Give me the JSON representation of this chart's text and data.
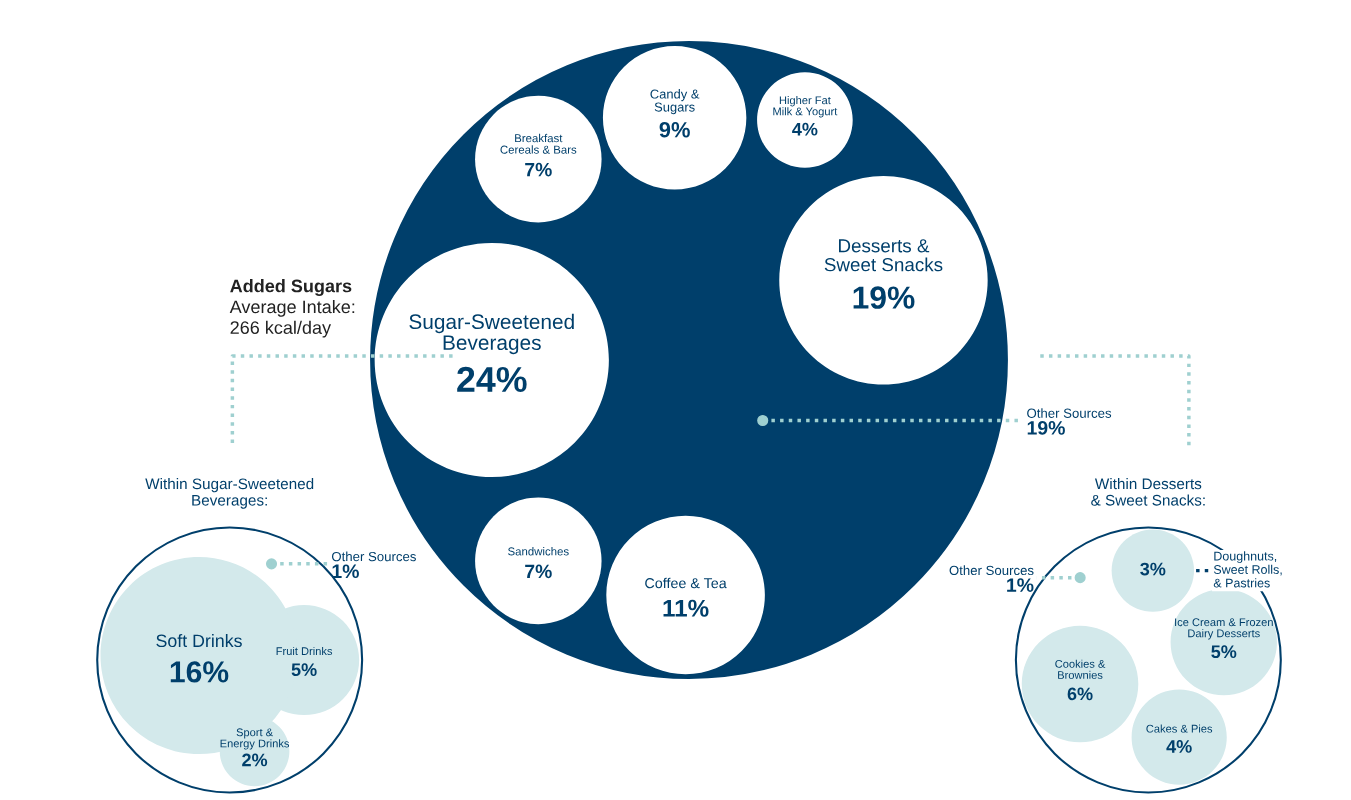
{
  "chart_data": [
    {
      "type": "other",
      "title": "Added Sugars",
      "subtitle": "Average Intake: 266 kcal/day",
      "categories": [
        "Sugar-Sweetened Beverages",
        "Breakfast Cereals & Bars",
        "Candy & Sugars",
        "Higher Fat Milk & Yogurt",
        "Desserts & Sweet Snacks",
        "Coffee & Tea",
        "Sandwiches",
        "Other Sources"
      ],
      "values": [
        24,
        7,
        9,
        4,
        19,
        11,
        7,
        19
      ],
      "value_labels": [
        "24%",
        "7%",
        "9%",
        "4%",
        "19%",
        "11%",
        "7%",
        "19%"
      ],
      "colors": [
        "#ffffff",
        "#ffffff",
        "#ffffff",
        "#ffffff",
        "#ffffff",
        "#ffffff",
        "#ffffff",
        "#9fd0d0"
      ]
    },
    {
      "type": "other",
      "title": "Within Sugar-Sweetened Beverages:",
      "categories": [
        "Fruit Drinks",
        "Sport & Energy Drinks",
        "Soft Drinks",
        "Other Sources"
      ],
      "values": [
        5,
        2,
        16,
        1
      ],
      "value_labels": [
        "5%",
        "2%",
        "16%",
        "1%"
      ],
      "colors": [
        "#d3e9eb",
        "#d3e9eb",
        "#d3e9eb",
        "#9fd0d0"
      ]
    },
    {
      "type": "other",
      "title": "Within Desserts & Sweet Snacks:",
      "categories": [
        "Doughnuts, Sweet Rolls, & Pastries",
        "Ice Cream & Frozen Dairy Desserts",
        "Cakes & Pies",
        "Cookies & Brownies",
        "Other Sources"
      ],
      "values": [
        3,
        5,
        4,
        6,
        1
      ],
      "value_labels": [
        "3%",
        "5%",
        "4%",
        "6%",
        "1%"
      ],
      "colors": [
        "#d3e9eb",
        "#d3e9eb",
        "#d3e9eb",
        "#d3e9eb",
        "#9fd0d0"
      ]
    }
  ]
}
